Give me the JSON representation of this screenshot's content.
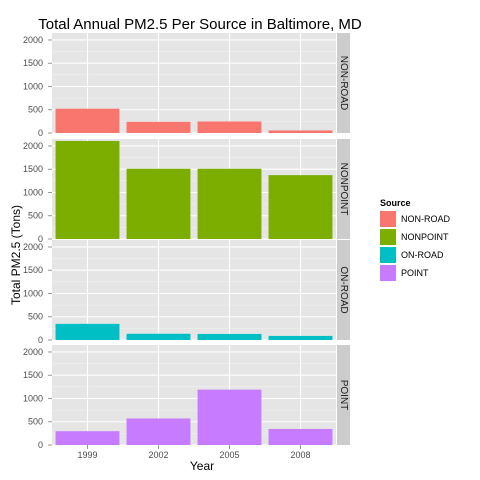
{
  "chart_data": {
    "type": "bar",
    "title": "Total Annual PM2.5 Per Source in Baltimore, MD",
    "xlabel": "Year",
    "ylabel": "Total PM2.5 (Tons)",
    "categories": [
      "1999",
      "2002",
      "2005",
      "2008"
    ],
    "ylim": [
      0,
      2150
    ],
    "yticks": [
      0,
      500,
      1000,
      1500,
      2000
    ],
    "facet": "rows",
    "grid": true,
    "legend_position": "right",
    "legend_title": "Source",
    "series": [
      {
        "name": "NON-ROAD",
        "color": "#F8766D",
        "values": [
          522,
          241,
          248,
          55
        ]
      },
      {
        "name": "NONPOINT",
        "color": "#7CAE00",
        "values": [
          2108,
          1510,
          1510,
          1373
        ]
      },
      {
        "name": "ON-ROAD",
        "color": "#00BFC4",
        "values": [
          347,
          134,
          130,
          88
        ]
      },
      {
        "name": "POINT",
        "color": "#C77CFF",
        "values": [
          297,
          570,
          1190,
          345
        ]
      }
    ]
  }
}
